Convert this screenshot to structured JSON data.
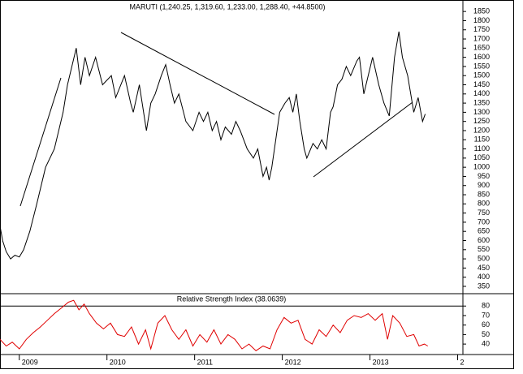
{
  "chart_data": [
    {
      "type": "line",
      "title": "MARUTI (1,240.25, 1,319.60, 1,233.00, 1,288.40, +44.8500)",
      "x": [
        2008.78,
        2008.81,
        2008.85,
        2008.9,
        2008.95,
        2009.0,
        2009.05,
        2009.12,
        2009.2,
        2009.3,
        2009.4,
        2009.5,
        2009.55,
        2009.6,
        2009.65,
        2009.7,
        2009.75,
        2009.8,
        2009.87,
        2009.95,
        2010.05,
        2010.1,
        2010.2,
        2010.27,
        2010.3,
        2010.37,
        2010.45,
        2010.5,
        2010.55,
        2010.62,
        2010.67,
        2010.72,
        2010.77,
        2010.82,
        2010.9,
        2010.98,
        2011.05,
        2011.1,
        2011.15,
        2011.2,
        2011.25,
        2011.3,
        2011.35,
        2011.42,
        2011.47,
        2011.52,
        2011.6,
        2011.67,
        2011.72,
        2011.78,
        2011.82,
        2011.85,
        2011.88,
        2011.97,
        2012.03,
        2012.08,
        2012.12,
        2012.16,
        2012.2,
        2012.25,
        2012.28,
        2012.35,
        2012.4,
        2012.45,
        2012.5,
        2012.55,
        2012.58,
        2012.63,
        2012.68,
        2012.73,
        2012.78,
        2012.85,
        2012.88,
        2012.93,
        2013.03,
        2013.1,
        2013.16,
        2013.22,
        2013.28,
        2013.33,
        2013.37,
        2013.43,
        2013.5,
        2013.55,
        2013.6,
        2013.63
      ],
      "series": [
        {
          "name": "MARUTI",
          "color": "#000000",
          "values": [
            680,
            600,
            540,
            500,
            520,
            510,
            550,
            650,
            800,
            1000,
            1100,
            1300,
            1450,
            1550,
            1650,
            1450,
            1600,
            1500,
            1600,
            1450,
            1500,
            1380,
            1500,
            1350,
            1300,
            1450,
            1200,
            1350,
            1400,
            1500,
            1560,
            1450,
            1350,
            1400,
            1250,
            1200,
            1300,
            1250,
            1300,
            1200,
            1250,
            1150,
            1220,
            1180,
            1250,
            1200,
            1100,
            1050,
            1100,
            950,
            1000,
            930,
            1000,
            1300,
            1350,
            1380,
            1300,
            1400,
            1250,
            1100,
            1050,
            1130,
            1100,
            1150,
            1100,
            1300,
            1330,
            1450,
            1480,
            1550,
            1500,
            1580,
            1600,
            1400,
            1600,
            1450,
            1350,
            1280,
            1600,
            1740,
            1600,
            1500,
            1300,
            1380,
            1250,
            1290
          ]
        }
      ],
      "xlim": [
        2008.78,
        2014.06
      ],
      "ylim": [
        310,
        1895
      ],
      "yticks": [
        350,
        400,
        450,
        500,
        550,
        600,
        650,
        700,
        750,
        800,
        850,
        900,
        950,
        1000,
        1050,
        1100,
        1150,
        1200,
        1250,
        1300,
        1350,
        1400,
        1450,
        1500,
        1550,
        1600,
        1650,
        1700,
        1750,
        1800,
        1850
      ]
    },
    {
      "type": "line",
      "title": "Relative Strength Index (38.0639)",
      "x": [
        2008.78,
        2008.85,
        2008.92,
        2009.0,
        2009.08,
        2009.16,
        2009.24,
        2009.32,
        2009.4,
        2009.48,
        2009.56,
        2009.62,
        2009.68,
        2009.74,
        2009.8,
        2009.88,
        2009.96,
        2010.04,
        2010.12,
        2010.2,
        2010.28,
        2010.36,
        2010.44,
        2010.5,
        2010.58,
        2010.66,
        2010.74,
        2010.82,
        2010.9,
        2010.98,
        2011.06,
        2011.14,
        2011.22,
        2011.3,
        2011.38,
        2011.46,
        2011.54,
        2011.62,
        2011.7,
        2011.78,
        2011.86,
        2011.94,
        2012.02,
        2012.1,
        2012.18,
        2012.26,
        2012.34,
        2012.42,
        2012.5,
        2012.58,
        2012.66,
        2012.74,
        2012.82,
        2012.9,
        2012.98,
        2013.06,
        2013.14,
        2013.2,
        2013.26,
        2013.34,
        2013.42,
        2013.5,
        2013.56,
        2013.62,
        2013.66
      ],
      "series": [
        {
          "name": "Relative Strength Index",
          "color": "#e00000",
          "values": [
            45,
            38,
            42,
            35,
            45,
            52,
            58,
            65,
            72,
            78,
            84,
            86,
            76,
            82,
            72,
            62,
            56,
            62,
            50,
            48,
            58,
            40,
            55,
            35,
            62,
            70,
            55,
            45,
            55,
            38,
            50,
            42,
            55,
            40,
            50,
            45,
            35,
            40,
            33,
            38,
            35,
            55,
            68,
            62,
            65,
            45,
            40,
            55,
            48,
            60,
            52,
            65,
            70,
            68,
            72,
            65,
            72,
            45,
            70,
            62,
            48,
            50,
            38,
            40,
            38
          ]
        }
      ],
      "xlim": [
        2008.78,
        2014.06
      ],
      "ylim": [
        29,
        93
      ],
      "yticks": [
        40,
        50,
        60,
        70,
        80
      ],
      "hlines": [
        80
      ],
      "xticks": [
        2009,
        2010,
        2011,
        2012,
        2013,
        {
          "value": 2014,
          "label": "2"
        }
      ]
    }
  ]
}
